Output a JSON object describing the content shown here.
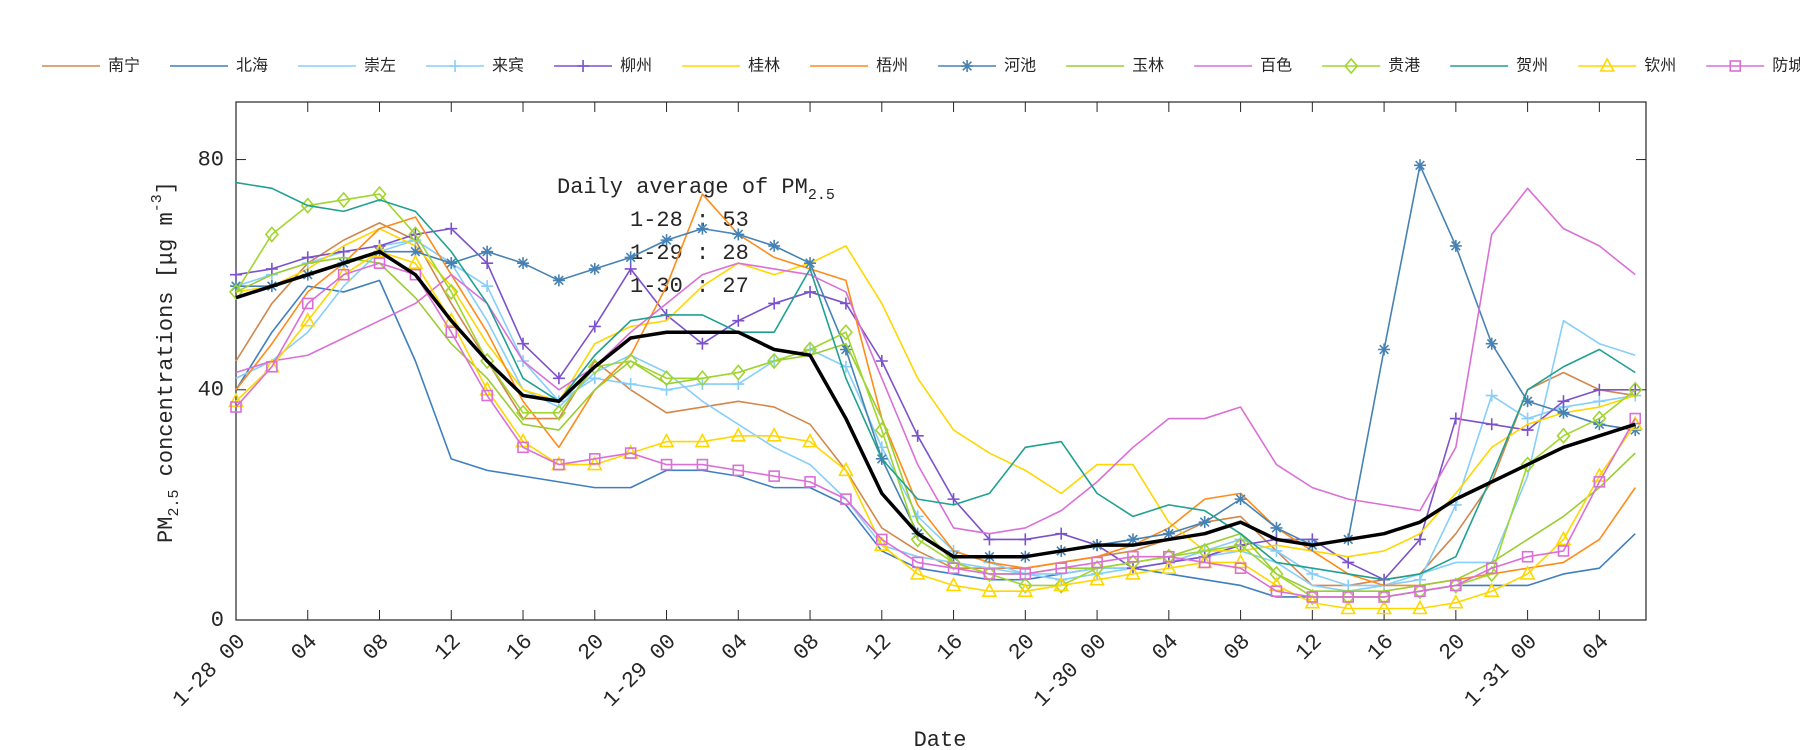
{
  "chart_data": {
    "type": "line",
    "y_label": {
      "pre": "PM",
      "sub": "2.5",
      "post": " concentrations [μg m",
      "sup": "-3",
      "end": "]"
    },
    "x_label": "Date",
    "annotation": {
      "title": "Daily average of PM",
      "title_sub": "2.5",
      "lines": [
        "1-28 : 53",
        "1-29 : 28",
        "1-30 : 27"
      ]
    },
    "x": [
      0,
      2,
      4,
      6,
      8,
      10,
      12,
      14,
      16,
      18,
      20,
      22,
      24,
      26,
      28,
      30,
      32,
      34,
      36,
      38,
      40,
      42,
      44,
      46,
      48,
      50,
      52,
      54,
      56,
      58,
      60,
      62,
      64,
      66,
      68,
      70,
      72,
      74,
      76,
      78
    ],
    "xlim": [
      0,
      78.6
    ],
    "xticks": [
      {
        "value": 0,
        "label": "1-28 00"
      },
      {
        "value": 4,
        "label": "04"
      },
      {
        "value": 8,
        "label": "08"
      },
      {
        "value": 12,
        "label": "12"
      },
      {
        "value": 16,
        "label": "16"
      },
      {
        "value": 20,
        "label": "20"
      },
      {
        "value": 24,
        "label": "1-29 00"
      },
      {
        "value": 28,
        "label": "04"
      },
      {
        "value": 32,
        "label": "08"
      },
      {
        "value": 36,
        "label": "12"
      },
      {
        "value": 40,
        "label": "16"
      },
      {
        "value": 44,
        "label": "20"
      },
      {
        "value": 48,
        "label": "1-30 00"
      },
      {
        "value": 52,
        "label": "04"
      },
      {
        "value": 56,
        "label": "08"
      },
      {
        "value": 60,
        "label": "12"
      },
      {
        "value": 64,
        "label": "16"
      },
      {
        "value": 68,
        "label": "20"
      },
      {
        "value": 72,
        "label": "1-31 00"
      },
      {
        "value": 76,
        "label": "04"
      }
    ],
    "ylim": [
      0,
      90
    ],
    "yticks": [
      0,
      40,
      80
    ],
    "grid": false,
    "legend": "top",
    "series": [
      {
        "name": "南宁",
        "color": "#d2874b",
        "marker": "none",
        "values": [
          45,
          55,
          62,
          66,
          69,
          66,
          55,
          45,
          35,
          35,
          45,
          40,
          36,
          37,
          38,
          37,
          34,
          26,
          16,
          12,
          9,
          9,
          9,
          10,
          11,
          12,
          14,
          17,
          18,
          12,
          6,
          6,
          7,
          8,
          15,
          24,
          40,
          43,
          40,
          39
        ]
      },
      {
        "name": "北海",
        "color": "#3f7fbf",
        "marker": "none",
        "values": [
          40,
          50,
          58,
          57,
          59,
          45,
          28,
          26,
          25,
          24,
          23,
          23,
          26,
          26,
          25,
          23,
          23,
          20,
          12,
          9,
          8,
          7,
          7,
          8,
          9,
          9,
          8,
          7,
          6,
          4,
          4,
          4,
          4,
          5,
          6,
          6,
          6,
          8,
          9,
          15
        ]
      },
      {
        "name": "崇左",
        "color": "#87cefa",
        "marker": "none",
        "values": [
          42,
          45,
          50,
          58,
          64,
          66,
          62,
          52,
          40,
          37,
          43,
          46,
          43,
          38,
          34,
          30,
          27,
          21,
          13,
          11,
          10,
          9,
          8,
          8,
          9,
          9,
          10,
          11,
          12,
          10,
          6,
          5,
          6,
          8,
          10,
          10,
          25,
          52,
          48,
          46
        ]
      },
      {
        "name": "来宾",
        "color": "#87cefa",
        "marker": "plus",
        "values": [
          58,
          60,
          62,
          64,
          65,
          66,
          62,
          58,
          45,
          38,
          42,
          41,
          40,
          41,
          41,
          45,
          47,
          44,
          30,
          18,
          12,
          10,
          8,
          7,
          8,
          9,
          10,
          12,
          14,
          12,
          8,
          6,
          6,
          7,
          20,
          39,
          35,
          37,
          38,
          39
        ]
      },
      {
        "name": "柳州",
        "color": "#7b52cc",
        "marker": "plus",
        "values": [
          60,
          61,
          63,
          64,
          65,
          67,
          68,
          62,
          48,
          42,
          51,
          61,
          53,
          48,
          52,
          55,
          57,
          55,
          45,
          32,
          21,
          14,
          14,
          15,
          13,
          9,
          10,
          11,
          13,
          14,
          14,
          10,
          7,
          14,
          35,
          34,
          33,
          38,
          40,
          40
        ]
      },
      {
        "name": "桂林",
        "color": "#ffd700",
        "marker": "none",
        "values": [
          57,
          58,
          61,
          65,
          68,
          65,
          58,
          48,
          40,
          38,
          48,
          51,
          52,
          58,
          62,
          60,
          62,
          65,
          55,
          42,
          33,
          29,
          26,
          22,
          27,
          27,
          17,
          12,
          12,
          13,
          12,
          11,
          12,
          15,
          22,
          30,
          34,
          36,
          37,
          39
        ]
      },
      {
        "name": "梧州",
        "color": "#ff8c1a",
        "marker": "none",
        "values": [
          40,
          48,
          57,
          62,
          68,
          70,
          60,
          50,
          38,
          30,
          40,
          46,
          58,
          74,
          67,
          63,
          61,
          59,
          35,
          20,
          12,
          10,
          9,
          10,
          11,
          13,
          16,
          21,
          22,
          16,
          12,
          8,
          6,
          6,
          7,
          8,
          9,
          10,
          14,
          23
        ]
      },
      {
        "name": "河池",
        "color": "#4682b4",
        "marker": "star",
        "values": [
          58,
          58,
          60,
          62,
          64,
          64,
          62,
          64,
          62,
          59,
          61,
          63,
          66,
          68,
          67,
          65,
          62,
          47,
          28,
          15,
          11,
          11,
          11,
          12,
          13,
          14,
          15,
          17,
          21,
          16,
          13,
          14,
          47,
          79,
          65,
          48,
          38,
          36,
          34,
          33
        ]
      },
      {
        "name": "玉林",
        "color": "#9acd32",
        "marker": "none",
        "values": [
          57,
          60,
          62,
          63,
          62,
          56,
          48,
          42,
          34,
          33,
          40,
          45,
          41,
          42,
          43,
          45,
          46,
          48,
          35,
          17,
          10,
          8,
          8,
          9,
          9,
          10,
          11,
          13,
          15,
          8,
          5,
          5,
          5,
          6,
          7,
          10,
          14,
          18,
          23,
          29
        ]
      },
      {
        "name": "百色",
        "color": "#da70d6",
        "marker": "none",
        "values": [
          43,
          45,
          46,
          49,
          52,
          55,
          60,
          55,
          45,
          40,
          44,
          50,
          55,
          60,
          62,
          61,
          60,
          57,
          42,
          27,
          16,
          15,
          16,
          19,
          24,
          30,
          35,
          35,
          37,
          27,
          23,
          21,
          20,
          19,
          30,
          67,
          75,
          68,
          65,
          60
        ]
      },
      {
        "name": "贵港",
        "color": "#a0d62e",
        "marker": "diamond",
        "values": [
          57,
          67,
          72,
          73,
          74,
          67,
          57,
          45,
          36,
          36,
          44,
          45,
          42,
          42,
          43,
          45,
          47,
          50,
          33,
          14,
          10,
          8,
          6,
          6,
          9,
          10,
          11,
          12,
          13,
          8,
          4,
          4,
          4,
          5,
          6,
          8,
          27,
          32,
          35,
          40
        ]
      },
      {
        "name": "贺州",
        "color": "#20a090",
        "marker": "none",
        "values": [
          76,
          75,
          72,
          71,
          73,
          71,
          64,
          55,
          42,
          38,
          46,
          52,
          53,
          53,
          50,
          50,
          61,
          42,
          28,
          21,
          20,
          22,
          30,
          31,
          22,
          18,
          20,
          19,
          15,
          10,
          9,
          8,
          7,
          8,
          11,
          25,
          40,
          44,
          47,
          43
        ]
      },
      {
        "name": "钦州",
        "color": "#ffd700",
        "marker": "triangle",
        "values": [
          38,
          44,
          52,
          60,
          64,
          62,
          52,
          40,
          31,
          27,
          27,
          29,
          31,
          31,
          32,
          32,
          31,
          26,
          13,
          8,
          6,
          5,
          5,
          6,
          7,
          8,
          9,
          10,
          10,
          6,
          3,
          2,
          2,
          2,
          3,
          5,
          8,
          14,
          25,
          34
        ]
      },
      {
        "name": "防城港",
        "color": "#da70d6",
        "marker": "square",
        "values": [
          37,
          44,
          55,
          60,
          62,
          60,
          50,
          39,
          30,
          27,
          28,
          29,
          27,
          27,
          26,
          25,
          24,
          21,
          14,
          10,
          9,
          8,
          8,
          9,
          10,
          11,
          11,
          10,
          9,
          5,
          4,
          4,
          4,
          5,
          6,
          9,
          11,
          12,
          24,
          35
        ]
      }
    ],
    "average": {
      "color": "#000000",
      "values": [
        56,
        58,
        60,
        62,
        64,
        60,
        52,
        45,
        39,
        38,
        44,
        49,
        50,
        50,
        50,
        47,
        46,
        35,
        22,
        15,
        11,
        11,
        11,
        12,
        13,
        13,
        14,
        15,
        17,
        14,
        13,
        14,
        15,
        17,
        21,
        24,
        27,
        30,
        32,
        34
      ]
    }
  }
}
